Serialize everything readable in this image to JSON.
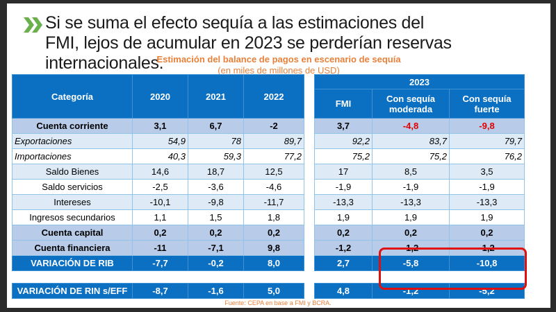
{
  "title": "Si se suma el efecto sequía a las estimaciones del FMI, lejos de acumular en 2023 se perderían reservas internacionales.",
  "subtitle": "Estimación del balance de pagos en escenario de sequía",
  "units": "(en miles de millones de USD)",
  "source": "Fuente: CEPA en base a FMI y BCRA.",
  "colors": {
    "header": "#0b6fc2",
    "accent": "#e8803a",
    "negative": "#e00000",
    "highlight_box": "#e01010",
    "bullet": "#6ab04c"
  },
  "icon": "double-chevron-right-icon",
  "left_headers": [
    "Categoría",
    "2020",
    "2021",
    "2022"
  ],
  "right_group_header": "2023",
  "right_headers": [
    "FMI",
    "Con sequía moderada",
    "Con sequía fuerte"
  ],
  "rows": [
    {
      "label": "Cuenta corriente",
      "style": "bold",
      "left": [
        "3,1",
        "6,7",
        "-2"
      ],
      "right": [
        "3,7",
        "-4,8",
        "-9,8"
      ]
    },
    {
      "label": "Exportaciones",
      "style": "pale it",
      "left": [
        "54,9",
        "78",
        "89,7"
      ],
      "right": [
        "92,2",
        "83,7",
        "79,7"
      ]
    },
    {
      "label": "Importaciones",
      "style": "white it",
      "left": [
        "40,3",
        "59,3",
        "77,2"
      ],
      "right": [
        "75,2",
        "75,2",
        "76,2"
      ]
    },
    {
      "label": "Saldo Bienes",
      "style": "pale",
      "left": [
        "14,6",
        "18,7",
        "12,5"
      ],
      "right": [
        "17",
        "8,5",
        "3,5"
      ]
    },
    {
      "label": "Saldo servicios",
      "style": "white",
      "left": [
        "-2,5",
        "-3,6",
        "-4,6"
      ],
      "right": [
        "-1,9",
        "-1,9",
        "-1,9"
      ]
    },
    {
      "label": "Intereses",
      "style": "pale",
      "left": [
        "-10,1",
        "-9,8",
        "-11,7"
      ],
      "right": [
        "-13,3",
        "-13,3",
        "-13,3"
      ]
    },
    {
      "label": "Ingresos secundarios",
      "style": "white",
      "left": [
        "1,1",
        "1,5",
        "1,8"
      ],
      "right": [
        "1,9",
        "1,9",
        "1,9"
      ]
    },
    {
      "label": "Cuenta capital",
      "style": "bold",
      "left": [
        "0,2",
        "0,2",
        "0,2"
      ],
      "right": [
        "0,2",
        "0,2",
        "0,2"
      ]
    },
    {
      "label": "Cuenta financiera",
      "style": "bold",
      "left": [
        "-11",
        "-7,1",
        "9,8"
      ],
      "right": [
        "-1,2",
        "-1,2",
        "-1,2"
      ]
    },
    {
      "label": "VARIACIÓN DE RIB",
      "style": "blue",
      "left": [
        "-7,7",
        "-0,2",
        "8,0"
      ],
      "right": [
        "2,7",
        "-5,8",
        "-10,8"
      ]
    },
    {
      "label": "",
      "style": "gap",
      "left": [
        "",
        "",
        ""
      ],
      "right": [
        "",
        "",
        ""
      ]
    },
    {
      "label": "VARIACIÓN DE RIN s/EFF",
      "style": "blue",
      "left": [
        "-8,7",
        "-1,6",
        "5,0"
      ],
      "right": [
        "4,8",
        "-1,2",
        "-5,2"
      ]
    }
  ]
}
